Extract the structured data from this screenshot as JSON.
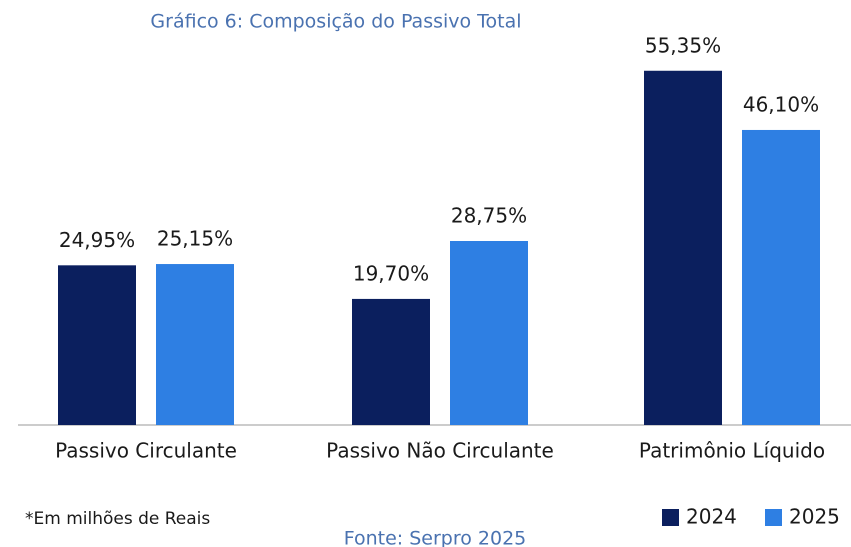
{
  "chart_data": {
    "type": "bar",
    "title": "Gráfico 6: Composição do Passivo Total",
    "categories": [
      "Passivo Circulante",
      "Passivo Não Circulante",
      "Patrimônio Líquido"
    ],
    "series": [
      {
        "name": "2024",
        "color": "#0b1f5e",
        "values": [
          24.95,
          19.7,
          55.35
        ],
        "value_labels": [
          "24,95%",
          "19,70%",
          "55,35%"
        ]
      },
      {
        "name": "2025",
        "color": "#2e7fe3",
        "values": [
          25.15,
          28.75,
          46.1
        ],
        "value_labels": [
          "25,15%",
          "28,75%",
          "46,10%"
        ]
      }
    ],
    "note": "*Em milhões de Reais",
    "source": "Fonte: Serpro 2025",
    "legend": "bottom-right"
  }
}
